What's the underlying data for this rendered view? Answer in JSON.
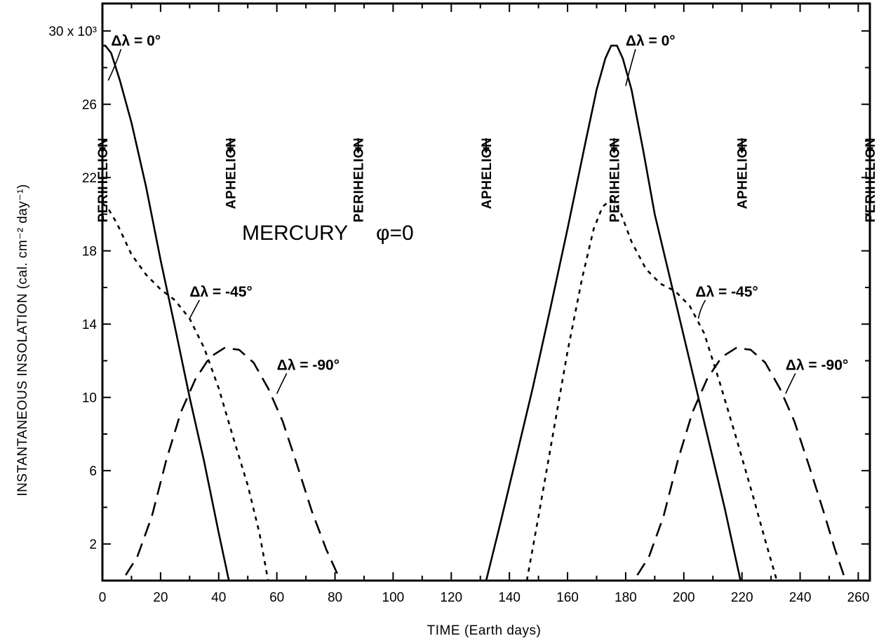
{
  "chart_data": {
    "type": "line",
    "title": "MERCURY",
    "title_phi": "φ=0",
    "xlabel": "TIME  (Earth days)",
    "ylabel": "INSTANTANEOUS  INSOLATION  (cal. cm⁻² day⁻¹)",
    "xlim": [
      0,
      264
    ],
    "ylim": [
      0,
      31.5
    ],
    "x_ticks": [
      0,
      20,
      40,
      60,
      80,
      100,
      120,
      140,
      160,
      180,
      200,
      220,
      240,
      260
    ],
    "y_ticks": [
      2,
      6,
      10,
      14,
      18,
      22,
      26,
      30
    ],
    "y_tick_labels": [
      "2",
      "6",
      "10",
      "14",
      "18",
      "22",
      "26",
      "30 x 10³"
    ],
    "events": [
      {
        "label": "PERIHELION",
        "x": 0
      },
      {
        "label": "APHELION",
        "x": 44
      },
      {
        "label": "PERIHELION",
        "x": 88
      },
      {
        "label": "APHELION",
        "x": 132
      },
      {
        "label": "PERIHELION",
        "x": 176
      },
      {
        "label": "APHELION",
        "x": 220
      },
      {
        "label": "PERIHELION",
        "x": 264
      }
    ],
    "series": [
      {
        "name": "Δλ = 0°",
        "style": "solid",
        "segments": [
          [
            [
              0,
              29.2
            ],
            [
              1,
              29.2
            ],
            [
              3,
              28.8
            ],
            [
              6,
              27.3
            ],
            [
              10,
              25.0
            ],
            [
              15,
              21.5
            ],
            [
              20,
              17.5
            ],
            [
              25,
              13.8
            ],
            [
              30,
              10.0
            ],
            [
              35,
              6.5
            ],
            [
              40,
              2.6
            ],
            [
              43.5,
              0
            ]
          ],
          [
            [
              132,
              0
            ],
            [
              137,
              3.2
            ],
            [
              142,
              6.5
            ],
            [
              148,
              10.5
            ],
            [
              154,
              14.8
            ],
            [
              160,
              19.2
            ],
            [
              166,
              23.8
            ],
            [
              170,
              26.8
            ],
            [
              173,
              28.5
            ],
            [
              175,
              29.2
            ],
            [
              177,
              29.2
            ],
            [
              179,
              28.5
            ],
            [
              182,
              26.8
            ],
            [
              186,
              23.5
            ],
            [
              190,
              20.0
            ],
            [
              196,
              16.0
            ],
            [
              202,
              12.0
            ],
            [
              208,
              8.0
            ],
            [
              214,
              4.0
            ],
            [
              219.5,
              0
            ]
          ]
        ]
      },
      {
        "name": "Δλ = -45°",
        "style": "dotted",
        "segments": [
          [
            [
              0,
              20.6
            ],
            [
              2,
              20.3
            ],
            [
              5,
              19.5
            ],
            [
              10,
              17.8
            ],
            [
              15,
              16.7
            ],
            [
              20,
              15.9
            ],
            [
              25,
              15.3
            ],
            [
              30,
              14.3
            ],
            [
              35,
              12.7
            ],
            [
              40,
              10.5
            ],
            [
              45,
              7.8
            ],
            [
              50,
              5.2
            ],
            [
              54,
              2.6
            ],
            [
              57,
              0
            ]
          ],
          [
            [
              146,
              0
            ],
            [
              150,
              3.5
            ],
            [
              155,
              8.0
            ],
            [
              160,
              12.5
            ],
            [
              165,
              16.5
            ],
            [
              169,
              19.2
            ],
            [
              172,
              20.4
            ],
            [
              175,
              20.8
            ],
            [
              178,
              20.2
            ],
            [
              182,
              18.5
            ],
            [
              187,
              17.0
            ],
            [
              192,
              16.2
            ],
            [
              197,
              15.8
            ],
            [
              202,
              15.0
            ],
            [
              207,
              13.5
            ],
            [
              212,
              11.0
            ],
            [
              218,
              7.8
            ],
            [
              224,
              4.5
            ],
            [
              228,
              2.2
            ],
            [
              232,
              0
            ]
          ]
        ]
      },
      {
        "name": "Δλ = -90°",
        "style": "dashed",
        "segments": [
          [
            [
              8,
              0.3
            ],
            [
              12,
              1.3
            ],
            [
              17,
              3.5
            ],
            [
              22,
              6.6
            ],
            [
              27,
              9.2
            ],
            [
              32,
              11.0
            ],
            [
              37,
              12.2
            ],
            [
              42,
              12.7
            ],
            [
              47,
              12.6
            ],
            [
              52,
              11.9
            ],
            [
              57,
              10.5
            ],
            [
              62,
              8.7
            ],
            [
              67,
              6.3
            ],
            [
              72,
              3.8
            ],
            [
              77,
              1.7
            ],
            [
              81,
              0.3
            ]
          ],
          [
            [
              184,
              0.3
            ],
            [
              188,
              1.3
            ],
            [
              193,
              3.5
            ],
            [
              198,
              6.6
            ],
            [
              203,
              9.2
            ],
            [
              208,
              11.0
            ],
            [
              213,
              12.2
            ],
            [
              218,
              12.7
            ],
            [
              223,
              12.6
            ],
            [
              228,
              11.9
            ],
            [
              233,
              10.5
            ],
            [
              238,
              8.7
            ],
            [
              243,
              6.3
            ],
            [
              248,
              3.8
            ],
            [
              252,
              1.7
            ],
            [
              255,
              0.3
            ]
          ]
        ]
      }
    ],
    "annotations": [
      {
        "text": "Δλ = 0°",
        "at": [
          3,
          29.2
        ],
        "leader_to": [
          2,
          27.3
        ]
      },
      {
        "text": "Δλ = 0°",
        "at": [
          180,
          29.2
        ],
        "leader_to": [
          180,
          27.0
        ]
      },
      {
        "text": "Δλ = -45°",
        "at": [
          30,
          15.5
        ],
        "leader_to": [
          30,
          14.3
        ]
      },
      {
        "text": "Δλ = -45°",
        "at": [
          204,
          15.5
        ],
        "leader_to": [
          205,
          14.3
        ]
      },
      {
        "text": "Δλ = -90°",
        "at": [
          60,
          11.5
        ],
        "leader_to": [
          60,
          10.2
        ]
      },
      {
        "text": "Δλ = -90°",
        "at": [
          235,
          11.5
        ],
        "leader_to": [
          235,
          10.2
        ]
      }
    ]
  }
}
